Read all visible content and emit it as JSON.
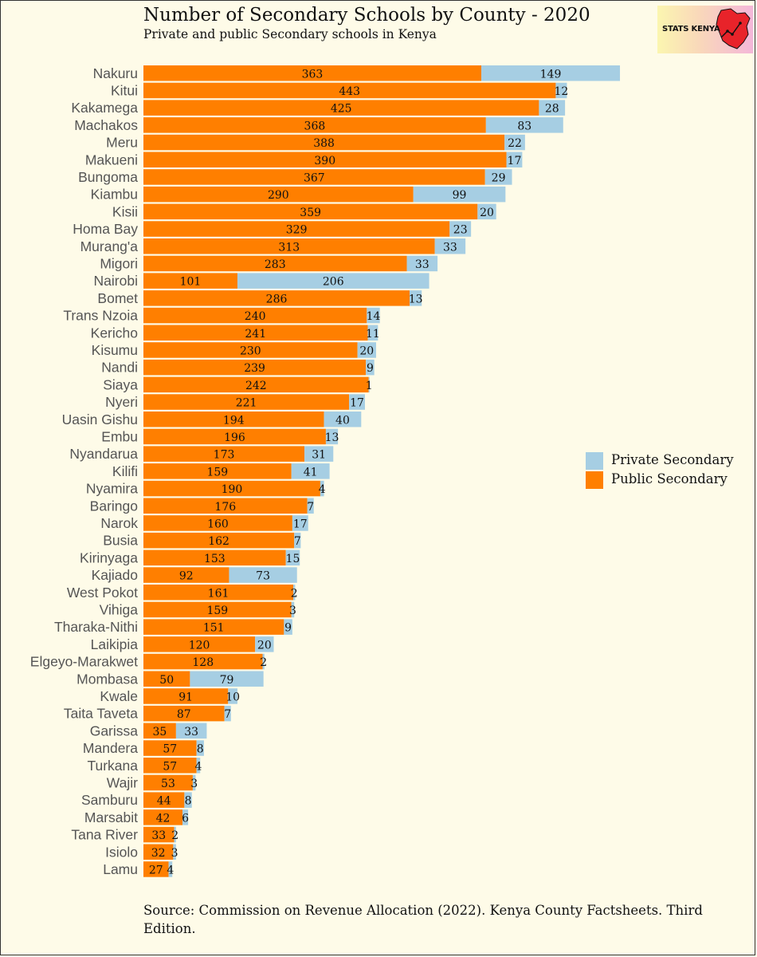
{
  "header": {
    "title": "Number of Secondary Schools by County - 2020",
    "subtitle": "Private and public Secondary schools in Kenya"
  },
  "logo": {
    "text": "STATS KENYA"
  },
  "footer": {
    "source": "Source: Commission on Revenue Allocation (2022). Kenya County Factsheets. Third Edition."
  },
  "colors": {
    "public": "#ff7f00",
    "private": "#a6cee3",
    "background": "#fefbe8"
  },
  "legend": {
    "position": "right",
    "items": [
      {
        "label": "Private Secondary",
        "color": "#a6cee3"
      },
      {
        "label": "Public Secondary",
        "color": "#ff7f00"
      }
    ]
  },
  "chart_data": {
    "type": "bar",
    "orientation": "horizontal",
    "stacked": true,
    "title": "Number of Secondary Schools by County - 2020",
    "subtitle": "Private and public Secondary schools in Kenya",
    "xlabel": "",
    "ylabel": "",
    "grid": false,
    "legend_position": "right",
    "categories": [
      "Nakuru",
      "Kitui",
      "Kakamega",
      "Machakos",
      "Meru",
      "Makueni",
      "Bungoma",
      "Kiambu",
      "Kisii",
      "Homa Bay",
      "Murang'a",
      "Migori",
      "Nairobi",
      "Bomet",
      "Trans Nzoia",
      "Kericho",
      "Kisumu",
      "Nandi",
      "Siaya",
      "Nyeri",
      "Uasin Gishu",
      "Embu",
      "Nyandarua",
      "Kilifi",
      "Nyamira",
      "Baringo",
      "Narok",
      "Busia",
      "Kirinyaga",
      "Kajiado",
      "West Pokot",
      "Vihiga",
      "Tharaka-Nithi",
      "Laikipia",
      "Elgeyo-Marakwet",
      "Mombasa",
      "Kwale",
      "Taita Taveta",
      "Garissa",
      "Mandera",
      "Turkana",
      "Wajir",
      "Samburu",
      "Marsabit",
      "Tana River",
      "Isiolo",
      "Lamu"
    ],
    "series": [
      {
        "name": "Public Secondary",
        "values": [
          363,
          443,
          425,
          368,
          388,
          390,
          367,
          290,
          359,
          329,
          313,
          283,
          101,
          286,
          240,
          241,
          230,
          239,
          242,
          221,
          194,
          196,
          173,
          159,
          190,
          176,
          160,
          162,
          153,
          92,
          161,
          159,
          151,
          120,
          128,
          50,
          91,
          87,
          35,
          57,
          57,
          53,
          44,
          42,
          33,
          32,
          27
        ]
      },
      {
        "name": "Private Secondary",
        "values": [
          149,
          12,
          28,
          83,
          22,
          17,
          29,
          99,
          20,
          23,
          33,
          33,
          206,
          13,
          14,
          11,
          20,
          9,
          1,
          17,
          40,
          13,
          31,
          41,
          4,
          7,
          17,
          7,
          15,
          73,
          2,
          3,
          9,
          20,
          2,
          79,
          10,
          7,
          33,
          8,
          4,
          3,
          8,
          6,
          2,
          3,
          4
        ]
      }
    ]
  }
}
